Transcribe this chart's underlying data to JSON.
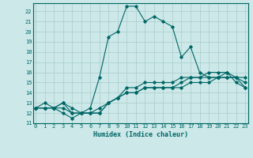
{
  "title": "",
  "xlabel": "Humidex (Indice chaleur)",
  "background_color": "#cce8e8",
  "grid_color": "#aacccc",
  "line_color": "#006666",
  "xlim": [
    0,
    23
  ],
  "ylim": [
    11,
    22.8
  ],
  "xtick_labels": [
    "0",
    "1",
    "2",
    "3",
    "4",
    "5",
    "6",
    "7",
    "8",
    "9",
    "10",
    "11",
    "12",
    "13",
    "14",
    "15",
    "16",
    "17",
    "18",
    "19",
    "20",
    "21",
    "22",
    "23"
  ],
  "xticks": [
    0,
    1,
    2,
    3,
    4,
    5,
    6,
    7,
    8,
    9,
    10,
    11,
    12,
    13,
    14,
    15,
    16,
    17,
    18,
    19,
    20,
    21,
    22,
    23
  ],
  "yticks": [
    11,
    12,
    13,
    14,
    15,
    16,
    17,
    18,
    19,
    20,
    21,
    22
  ],
  "series": [
    [
      12.5,
      13.0,
      12.5,
      12.0,
      11.5,
      12.0,
      12.5,
      15.5,
      19.5,
      20.0,
      22.5,
      22.5,
      21.0,
      21.5,
      21.0,
      20.5,
      17.5,
      18.5,
      16.0,
      15.5,
      15.5,
      16.0,
      15.0,
      14.5
    ],
    [
      12.5,
      12.5,
      12.5,
      13.0,
      12.0,
      12.0,
      12.0,
      12.0,
      13.0,
      13.5,
      14.0,
      14.0,
      14.5,
      14.5,
      14.5,
      14.5,
      15.0,
      15.5,
      15.5,
      15.5,
      15.5,
      15.5,
      15.5,
      15.5
    ],
    [
      12.5,
      12.5,
      12.5,
      12.5,
      12.0,
      12.0,
      12.0,
      12.5,
      13.0,
      13.5,
      14.0,
      14.0,
      14.5,
      14.5,
      14.5,
      14.5,
      14.5,
      15.0,
      15.0,
      15.0,
      15.5,
      15.5,
      15.5,
      14.5
    ],
    [
      12.5,
      12.5,
      12.5,
      13.0,
      12.5,
      12.0,
      12.0,
      12.0,
      13.0,
      13.5,
      14.5,
      14.5,
      15.0,
      15.0,
      15.0,
      15.0,
      15.5,
      15.5,
      15.5,
      16.0,
      16.0,
      16.0,
      15.5,
      15.0
    ]
  ]
}
